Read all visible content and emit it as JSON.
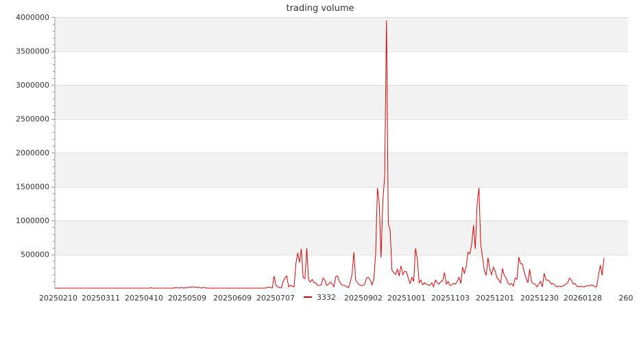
{
  "chart_data": {
    "type": "line",
    "title": "trading volume",
    "xlabel": "",
    "ylabel": "",
    "ylim": [
      0,
      4000000
    ],
    "yticks": [
      500000,
      1000000,
      1500000,
      2000000,
      2500000,
      3000000,
      3500000,
      4000000
    ],
    "ytick_labels": [
      "500000",
      "1000000",
      "1500000",
      "2000000",
      "2500000",
      "3000000",
      "3500000",
      "4000000"
    ],
    "xtick_labels": [
      "20250210",
      "20250311",
      "20250410",
      "20250509",
      "20250609",
      "20250707",
      "20250902",
      "20251001",
      "20251103",
      "20251201",
      "20251230",
      "20260128",
      "260"
    ],
    "grid": true,
    "band_color": "#f2f2f2",
    "line_color": "#dd0000",
    "legend_position": "bottom-center",
    "series": [
      {
        "name": "3332",
        "color": "#dd0000",
        "values": [
          0,
          0,
          0,
          0,
          0,
          0,
          0,
          0,
          0,
          0,
          0,
          0,
          0,
          0,
          0,
          0,
          0,
          0,
          0,
          0,
          0,
          0,
          0,
          0,
          0,
          0,
          0,
          0,
          0,
          0,
          0,
          0,
          0,
          0,
          0,
          0,
          0,
          0,
          0,
          0,
          0,
          0,
          0,
          0,
          0,
          0,
          0,
          0,
          0,
          0,
          0,
          0,
          0,
          8000,
          0,
          0,
          0,
          0,
          0,
          0,
          0,
          0,
          0,
          0,
          0,
          0,
          5000,
          10000,
          8000,
          0,
          15000,
          0,
          10000,
          5000,
          20000,
          10000,
          20000,
          15000,
          10000,
          15000,
          10000,
          0,
          15000,
          5000,
          0,
          0,
          0,
          0,
          0,
          0,
          0,
          0,
          0,
          0,
          0,
          0,
          0,
          0,
          0,
          0,
          0,
          0,
          0,
          0,
          0,
          0,
          0,
          0,
          0,
          0,
          0,
          0,
          0,
          0,
          0,
          0,
          0,
          10000,
          15000,
          10000,
          5000,
          180000,
          40000,
          20000,
          10000,
          5000,
          100000,
          150000,
          180000,
          20000,
          40000,
          30000,
          20000,
          360000,
          520000,
          380000,
          580000,
          160000,
          140000,
          590000,
          120000,
          90000,
          130000,
          80000,
          80000,
          40000,
          40000,
          50000,
          150000,
          120000,
          40000,
          60000,
          90000,
          60000,
          20000,
          170000,
          180000,
          100000,
          60000,
          40000,
          40000,
          20000,
          10000,
          90000,
          200000,
          530000,
          120000,
          80000,
          50000,
          40000,
          40000,
          60000,
          150000,
          160000,
          120000,
          50000,
          130000,
          500000,
          1480000,
          1250000,
          450000,
          1300000,
          1650000,
          3950000,
          950000,
          850000,
          270000,
          230000,
          200000,
          280000,
          180000,
          330000,
          200000,
          250000,
          240000,
          150000,
          70000,
          160000,
          100000,
          590000,
          430000,
          80000,
          120000,
          50000,
          80000,
          60000,
          50000,
          40000,
          80000,
          20000,
          120000,
          80000,
          60000,
          100000,
          110000,
          230000,
          60000,
          100000,
          40000,
          50000,
          70000,
          60000,
          100000,
          160000,
          70000,
          310000,
          220000,
          320000,
          530000,
          510000,
          650000,
          930000,
          580000,
          1250000,
          1480000,
          650000,
          450000,
          260000,
          190000,
          450000,
          280000,
          200000,
          310000,
          250000,
          150000,
          120000,
          80000,
          290000,
          190000,
          150000,
          80000,
          50000,
          70000,
          30000,
          150000,
          130000,
          460000,
          360000,
          360000,
          240000,
          150000,
          80000,
          280000,
          90000,
          70000,
          60000,
          20000,
          60000,
          100000,
          20000,
          220000,
          120000,
          120000,
          100000,
          60000,
          70000,
          40000,
          20000,
          30000,
          20000,
          30000,
          40000,
          60000,
          80000,
          150000,
          120000,
          60000,
          70000,
          30000,
          20000,
          30000,
          20000,
          20000,
          30000,
          40000,
          30000,
          50000,
          40000,
          20000,
          20000,
          200000,
          340000,
          190000,
          450000
        ]
      }
    ]
  }
}
